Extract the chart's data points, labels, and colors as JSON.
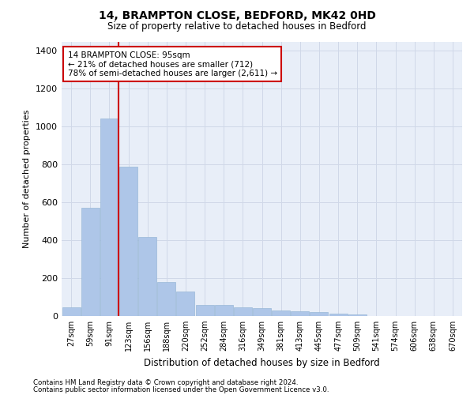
{
  "title1": "14, BRAMPTON CLOSE, BEDFORD, MK42 0HD",
  "title2": "Size of property relative to detached houses in Bedford",
  "xlabel": "Distribution of detached houses by size in Bedford",
  "ylabel": "Number of detached properties",
  "categories": [
    "27sqm",
    "59sqm",
    "91sqm",
    "123sqm",
    "156sqm",
    "188sqm",
    "220sqm",
    "252sqm",
    "284sqm",
    "316sqm",
    "349sqm",
    "381sqm",
    "413sqm",
    "445sqm",
    "477sqm",
    "509sqm",
    "541sqm",
    "574sqm",
    "606sqm",
    "638sqm",
    "670sqm"
  ],
  "values": [
    45,
    572,
    1042,
    790,
    418,
    178,
    128,
    60,
    58,
    45,
    42,
    28,
    27,
    20,
    12,
    10,
    0,
    0,
    0,
    0,
    0
  ],
  "bar_color": "#aec6e8",
  "bar_edge_color": "#9ab8d8",
  "vline_x_index": 2,
  "vline_color": "#cc0000",
  "annotation_line1": "14 BRAMPTON CLOSE: 95sqm",
  "annotation_line2": "← 21% of detached houses are smaller (712)",
  "annotation_line3": "78% of semi-detached houses are larger (2,611) →",
  "annotation_box_color": "#ffffff",
  "annotation_border_color": "#cc0000",
  "ylim": [
    0,
    1450
  ],
  "yticks": [
    0,
    200,
    400,
    600,
    800,
    1000,
    1200,
    1400
  ],
  "grid_color": "#d0d8e8",
  "bg_color": "#e8eef8",
  "footer1": "Contains HM Land Registry data © Crown copyright and database right 2024.",
  "footer2": "Contains public sector information licensed under the Open Government Licence v3.0."
}
